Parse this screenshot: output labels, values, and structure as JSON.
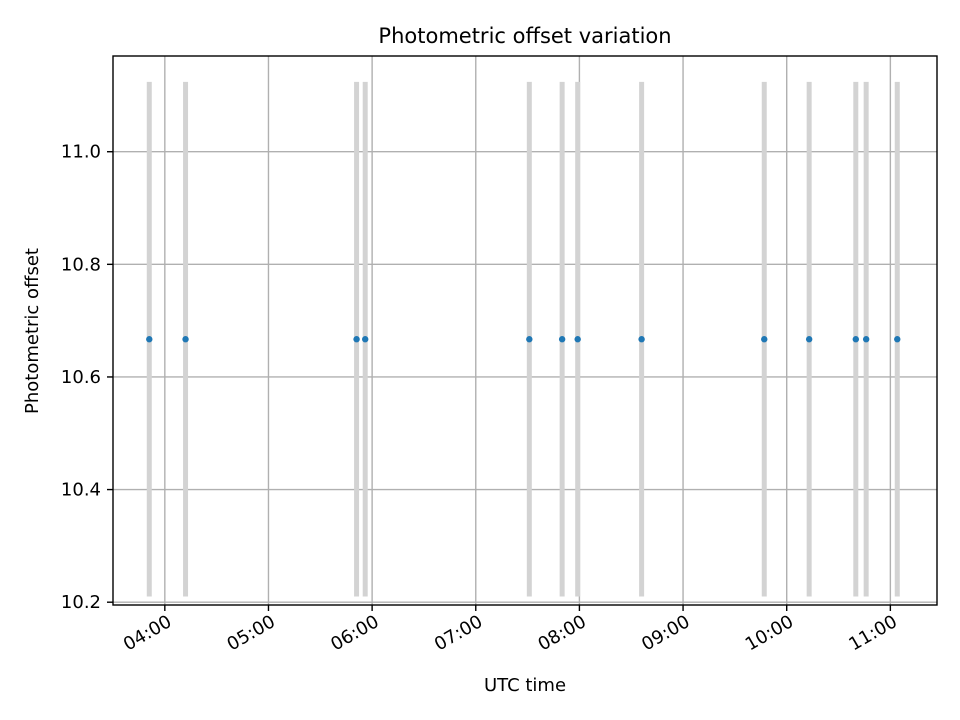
{
  "chart_data": {
    "type": "scatter",
    "title": "Photometric offset variation",
    "xlabel": "UTC time",
    "ylabel": "Photometric offset",
    "x_axis": {
      "kind": "time",
      "range": [
        "03:30",
        "11:27"
      ],
      "ticks": [
        "04:00",
        "05:00",
        "06:00",
        "07:00",
        "08:00",
        "09:00",
        "10:00",
        "11:00"
      ]
    },
    "y_axis": {
      "range": [
        10.195,
        11.17
      ],
      "ticks": [
        10.2,
        10.4,
        10.6,
        10.8,
        11.0
      ],
      "tick_labels": [
        "10.2",
        "10.4",
        "10.6",
        "10.8",
        "11.0"
      ]
    },
    "grid": true,
    "series": [
      {
        "marker": "dot",
        "color": "#1f77b4",
        "errorbar_color": "#d3d3d3",
        "points": [
          {
            "x": "03:51",
            "y": 10.667,
            "yerr": 0.457
          },
          {
            "x": "04:12",
            "y": 10.667,
            "yerr": 0.457
          },
          {
            "x": "05:51",
            "y": 10.667,
            "yerr": 0.457
          },
          {
            "x": "05:56",
            "y": 10.667,
            "yerr": 0.457
          },
          {
            "x": "07:31",
            "y": 10.667,
            "yerr": 0.457
          },
          {
            "x": "07:50",
            "y": 10.667,
            "yerr": 0.457
          },
          {
            "x": "07:59",
            "y": 10.667,
            "yerr": 0.457
          },
          {
            "x": "08:36",
            "y": 10.667,
            "yerr": 0.457
          },
          {
            "x": "09:47",
            "y": 10.667,
            "yerr": 0.457
          },
          {
            "x": "10:13",
            "y": 10.667,
            "yerr": 0.457
          },
          {
            "x": "10:40",
            "y": 10.667,
            "yerr": 0.457
          },
          {
            "x": "10:46",
            "y": 10.667,
            "yerr": 0.457
          },
          {
            "x": "11:04",
            "y": 10.667,
            "yerr": 0.457
          }
        ]
      }
    ]
  }
}
